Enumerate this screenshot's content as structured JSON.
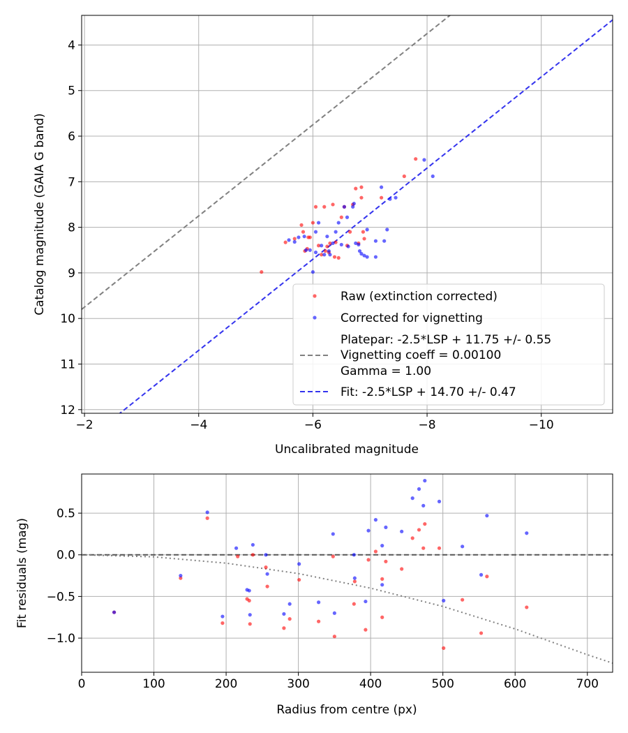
{
  "chart_data": [
    {
      "type": "scatter",
      "xlabel": "Uncalibrated magnitude",
      "ylabel": "Catalog magnitude (GAIA G band)",
      "xlim": [
        -1.95,
        -11.25
      ],
      "ylim": [
        12.08,
        3.35
      ],
      "x_ticks": [
        -2,
        -4,
        -6,
        -8,
        -10
      ],
      "x_tick_labels": [
        "−2",
        "−4",
        "−6",
        "−8",
        "−10"
      ],
      "y_ticks": [
        4,
        5,
        6,
        7,
        8,
        9,
        10,
        11,
        12
      ],
      "y_tick_labels": [
        "4",
        "5",
        "6",
        "7",
        "8",
        "9",
        "10",
        "11",
        "12"
      ],
      "grid": true,
      "legend_position": "lower-right",
      "legend": [
        {
          "label": "Raw (extinction corrected)",
          "kind": "dot",
          "color": "#ff0000"
        },
        {
          "label": "Corrected for vignetting",
          "kind": "dot",
          "color": "#0000ff"
        },
        {
          "label_lines": [
            "Platepar: -2.5*LSP + 11.75 +/- 0.55",
            "Vignetting coeff = 0.00100",
            "Gamma = 1.00"
          ],
          "kind": "dash",
          "color": "#808080"
        },
        {
          "label": "Fit: -2.5*LSP + 14.70 +/- 0.47",
          "kind": "dash",
          "color": "#3333ee"
        }
      ],
      "lines": [
        {
          "name": "platepar",
          "slope": 1,
          "intercept": 11.75,
          "color": "#808080",
          "style": "dashed"
        },
        {
          "name": "fit",
          "slope": 1,
          "intercept": 14.7,
          "color": "#3333ee",
          "style": "dashed"
        }
      ],
      "series": [
        {
          "name": "Raw (extinction corrected)",
          "color": "#ff0000",
          "points": [
            [
              -5.1,
              8.98
            ],
            [
              -5.52,
              8.33
            ],
            [
              -5.68,
              8.25
            ],
            [
              -5.8,
              7.95
            ],
            [
              -5.83,
              8.1
            ],
            [
              -5.86,
              8.52
            ],
            [
              -5.9,
              8.47
            ],
            [
              -5.92,
              8.22
            ],
            [
              -5.95,
              8.22
            ],
            [
              -6.0,
              7.9
            ],
            [
              -6.05,
              7.55
            ],
            [
              -6.1,
              8.4
            ],
            [
              -6.15,
              8.6
            ],
            [
              -6.2,
              7.55
            ],
            [
              -6.22,
              8.52
            ],
            [
              -6.25,
              8.42
            ],
            [
              -6.28,
              8.55
            ],
            [
              -6.3,
              8.35
            ],
            [
              -6.35,
              7.5
            ],
            [
              -6.38,
              8.65
            ],
            [
              -6.4,
              8.33
            ],
            [
              -6.45,
              8.67
            ],
            [
              -6.5,
              7.78
            ],
            [
              -6.55,
              7.55
            ],
            [
              -6.6,
              8.4
            ],
            [
              -6.65,
              8.1
            ],
            [
              -6.7,
              7.5
            ],
            [
              -6.75,
              7.15
            ],
            [
              -6.8,
              8.35
            ],
            [
              -6.85,
              7.12
            ],
            [
              -6.85,
              7.35
            ],
            [
              -6.88,
              8.1
            ],
            [
              -6.9,
              8.25
            ],
            [
              -7.2,
              7.35
            ],
            [
              -7.6,
              6.88
            ],
            [
              -7.8,
              6.5
            ]
          ]
        },
        {
          "name": "Corrected for vignetting",
          "color": "#0000ff",
          "points": [
            [
              -5.58,
              8.28
            ],
            [
              -5.68,
              8.32
            ],
            [
              -5.75,
              8.22
            ],
            [
              -5.85,
              8.2
            ],
            [
              -5.88,
              8.5
            ],
            [
              -5.95,
              8.5
            ],
            [
              -6.0,
              8.98
            ],
            [
              -6.05,
              8.1
            ],
            [
              -6.05,
              8.55
            ],
            [
              -6.1,
              7.9
            ],
            [
              -6.15,
              8.4
            ],
            [
              -6.2,
              8.6
            ],
            [
              -6.25,
              8.2
            ],
            [
              -6.28,
              8.52
            ],
            [
              -6.3,
              8.6
            ],
            [
              -6.35,
              8.35
            ],
            [
              -6.4,
              8.1
            ],
            [
              -6.45,
              7.9
            ],
            [
              -6.5,
              8.38
            ],
            [
              -6.55,
              7.55
            ],
            [
              -6.6,
              7.78
            ],
            [
              -6.62,
              8.42
            ],
            [
              -6.7,
              7.55
            ],
            [
              -6.72,
              7.48
            ],
            [
              -6.75,
              8.35
            ],
            [
              -6.8,
              8.38
            ],
            [
              -6.82,
              8.52
            ],
            [
              -6.85,
              8.58
            ],
            [
              -6.9,
              8.62
            ],
            [
              -6.95,
              8.05
            ],
            [
              -6.95,
              8.65
            ],
            [
              -7.1,
              8.65
            ],
            [
              -7.1,
              8.3
            ],
            [
              -7.25,
              8.3
            ],
            [
              -7.3,
              8.05
            ],
            [
              -7.2,
              7.12
            ],
            [
              -7.35,
              7.38
            ],
            [
              -7.45,
              7.35
            ],
            [
              -7.95,
              6.52
            ],
            [
              -8.1,
              6.88
            ]
          ]
        }
      ]
    },
    {
      "type": "scatter",
      "xlabel": "Radius from centre (px)",
      "ylabel": "Fit residuals (mag)",
      "xlim": [
        0,
        735
      ],
      "ylim": [
        -1.41,
        0.97
      ],
      "x_ticks": [
        0,
        100,
        200,
        300,
        400,
        500,
        600,
        700
      ],
      "x_tick_labels": [
        "0",
        "100",
        "200",
        "300",
        "400",
        "500",
        "600",
        "700"
      ],
      "y_ticks": [
        0.5,
        0.0,
        -0.5,
        -1.0
      ],
      "y_tick_labels": [
        "0.5",
        "0.0",
        "−0.5",
        "−1.0"
      ],
      "grid": true,
      "reference_lines": [
        {
          "name": "zero",
          "y": 0,
          "color": "#555555",
          "style": "dashed"
        },
        {
          "name": "vignetting model",
          "model": "0.0025*(1-1/cos^2(0.001*r)) equivalent curve",
          "color": "#808080",
          "style": "dotted",
          "x": [
            0,
            100,
            200,
            300,
            400,
            500,
            600,
            700,
            735
          ],
          "y": [
            0.0,
            -0.025,
            -0.1,
            -0.225,
            -0.4,
            -0.62,
            -0.89,
            -1.2,
            -1.3
          ]
        }
      ],
      "series": [
        {
          "name": "Raw (extinction corrected)",
          "color": "#ff0000",
          "points": [
            [
              45,
              -0.69
            ],
            [
              137,
              -0.28
            ],
            [
              174,
              0.44
            ],
            [
              195,
              -0.82
            ],
            [
              216,
              -0.02
            ],
            [
              229,
              -0.53
            ],
            [
              232,
              -0.55
            ],
            [
              233,
              -0.83
            ],
            [
              237,
              0.0
            ],
            [
              255,
              -0.15
            ],
            [
              257,
              -0.38
            ],
            [
              280,
              -0.88
            ],
            [
              288,
              -0.77
            ],
            [
              301,
              -0.3
            ],
            [
              328,
              -0.8
            ],
            [
              348,
              -0.02
            ],
            [
              350,
              -0.98
            ],
            [
              378,
              -0.32
            ],
            [
              377,
              -0.59
            ],
            [
              393,
              -0.9
            ],
            [
              397,
              -0.06
            ],
            [
              407,
              0.04
            ],
            [
              416,
              -0.29
            ],
            [
              416,
              -0.75
            ],
            [
              421,
              -0.08
            ],
            [
              443,
              -0.17
            ],
            [
              458,
              0.2
            ],
            [
              467,
              0.3
            ],
            [
              473,
              0.08
            ],
            [
              475,
              0.37
            ],
            [
              495,
              0.08
            ],
            [
              501,
              -1.12
            ],
            [
              527,
              -0.54
            ],
            [
              553,
              -0.94
            ],
            [
              561,
              -0.26
            ],
            [
              616,
              -0.63
            ]
          ]
        },
        {
          "name": "Corrected for vignetting",
          "color": "#0000ff",
          "points": [
            [
              45,
              -0.69
            ],
            [
              137,
              -0.25
            ],
            [
              174,
              0.51
            ],
            [
              195,
              -0.74
            ],
            [
              214,
              0.08
            ],
            [
              229,
              -0.42
            ],
            [
              232,
              -0.43
            ],
            [
              233,
              -0.72
            ],
            [
              237,
              0.12
            ],
            [
              255,
              0.0
            ],
            [
              257,
              -0.23
            ],
            [
              280,
              -0.71
            ],
            [
              288,
              -0.59
            ],
            [
              301,
              -0.11
            ],
            [
              328,
              -0.57
            ],
            [
              348,
              0.25
            ],
            [
              350,
              -0.7
            ],
            [
              378,
              -0.28
            ],
            [
              377,
              0.0
            ],
            [
              393,
              -0.56
            ],
            [
              397,
              0.29
            ],
            [
              407,
              0.42
            ],
            [
              416,
              -0.36
            ],
            [
              421,
              0.33
            ],
            [
              416,
              0.11
            ],
            [
              443,
              0.28
            ],
            [
              458,
              0.68
            ],
            [
              467,
              0.79
            ],
            [
              473,
              0.59
            ],
            [
              475,
              0.89
            ],
            [
              495,
              0.64
            ],
            [
              501,
              -0.55
            ],
            [
              527,
              0.1
            ],
            [
              553,
              -0.24
            ],
            [
              561,
              0.47
            ],
            [
              616,
              0.26
            ]
          ]
        }
      ]
    }
  ]
}
